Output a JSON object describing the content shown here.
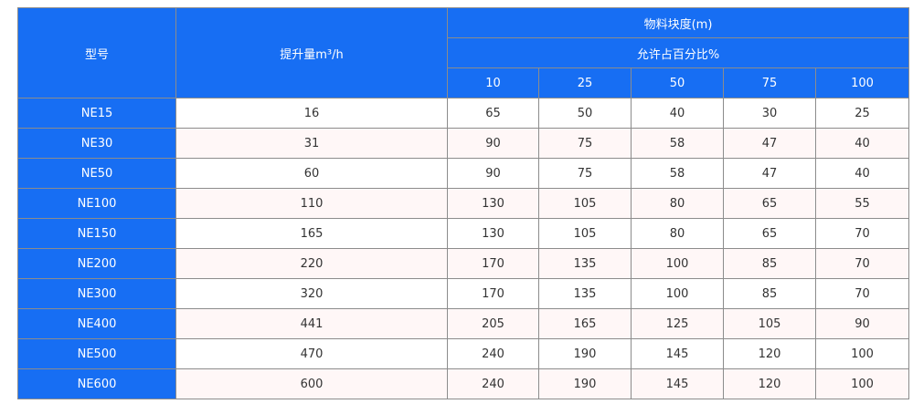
{
  "header": {
    "model": "型号",
    "capacity": "提升量m³/h",
    "size": "物料块度(m)",
    "percent": "允许占百分比%",
    "sizes": [
      "10",
      "25",
      "50",
      "75",
      "100"
    ]
  },
  "colors": {
    "header_bg": "#176ef3",
    "alt_row_bg": "#fff7f7"
  },
  "rows": [
    {
      "model": "NE15",
      "capacity": "16",
      "values": [
        "65",
        "50",
        "40",
        "30",
        "25"
      ]
    },
    {
      "model": "NE30",
      "capacity": "31",
      "values": [
        "90",
        "75",
        "58",
        "47",
        "40"
      ]
    },
    {
      "model": "NE50",
      "capacity": "60",
      "values": [
        "90",
        "75",
        "58",
        "47",
        "40"
      ]
    },
    {
      "model": "NE100",
      "capacity": "110",
      "values": [
        "130",
        "105",
        "80",
        "65",
        "55"
      ]
    },
    {
      "model": "NE150",
      "capacity": "165",
      "values": [
        "130",
        "105",
        "80",
        "65",
        "70"
      ]
    },
    {
      "model": "NE200",
      "capacity": "220",
      "values": [
        "170",
        "135",
        "100",
        "85",
        "70"
      ]
    },
    {
      "model": "NE300",
      "capacity": "320",
      "values": [
        "170",
        "135",
        "100",
        "85",
        "70"
      ]
    },
    {
      "model": "NE400",
      "capacity": "441",
      "values": [
        "205",
        "165",
        "125",
        "105",
        "90"
      ]
    },
    {
      "model": "NE500",
      "capacity": "470",
      "values": [
        "240",
        "190",
        "145",
        "120",
        "100"
      ]
    },
    {
      "model": "NE600",
      "capacity": "600",
      "values": [
        "240",
        "190",
        "145",
        "120",
        "100"
      ]
    }
  ]
}
